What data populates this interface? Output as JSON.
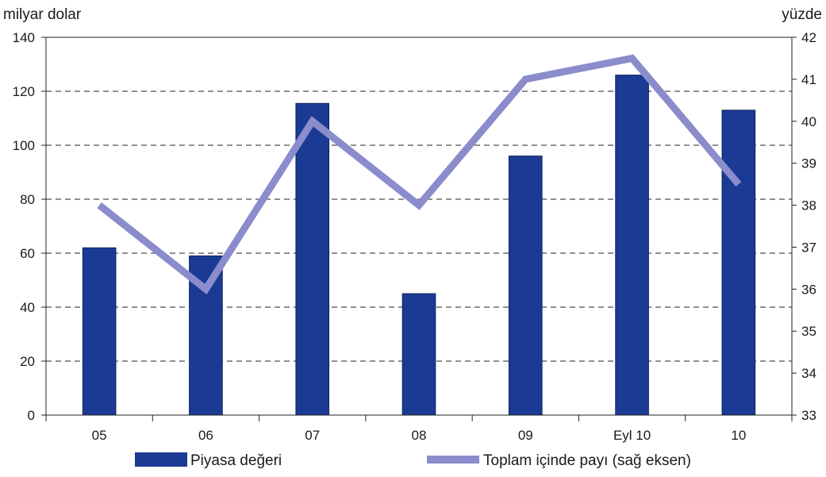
{
  "chart_data": {
    "type": "bar+line",
    "title": "",
    "left_axis_label": "milyar dolar",
    "right_axis_label": "yüzde",
    "categories": [
      "05",
      "06",
      "07",
      "08",
      "09",
      "Eyl 10",
      "10"
    ],
    "left_axis": {
      "range": [
        0,
        140
      ],
      "ticks": [
        "0",
        "20",
        "40",
        "60",
        "80",
        "100",
        "120",
        "140"
      ]
    },
    "right_axis": {
      "range": [
        33,
        42
      ],
      "ticks": [
        "33",
        "34",
        "35",
        "36",
        "37",
        "38",
        "39",
        "40",
        "41",
        "42"
      ]
    },
    "series": [
      {
        "name": "Piyasa değeri",
        "type": "bar",
        "axis": "left",
        "color": "#1a3a94",
        "values": [
          62,
          59,
          115.5,
          45,
          96,
          126,
          113
        ]
      },
      {
        "name": "Toplam içinde payı (sağ eksen)",
        "type": "line",
        "axis": "right",
        "color": "#8a8ccc",
        "values": [
          38.0,
          36.0,
          40.0,
          38.0,
          41.0,
          41.5,
          38.5
        ]
      }
    ],
    "grid": "horizontal dashed",
    "legend": "bottom"
  }
}
